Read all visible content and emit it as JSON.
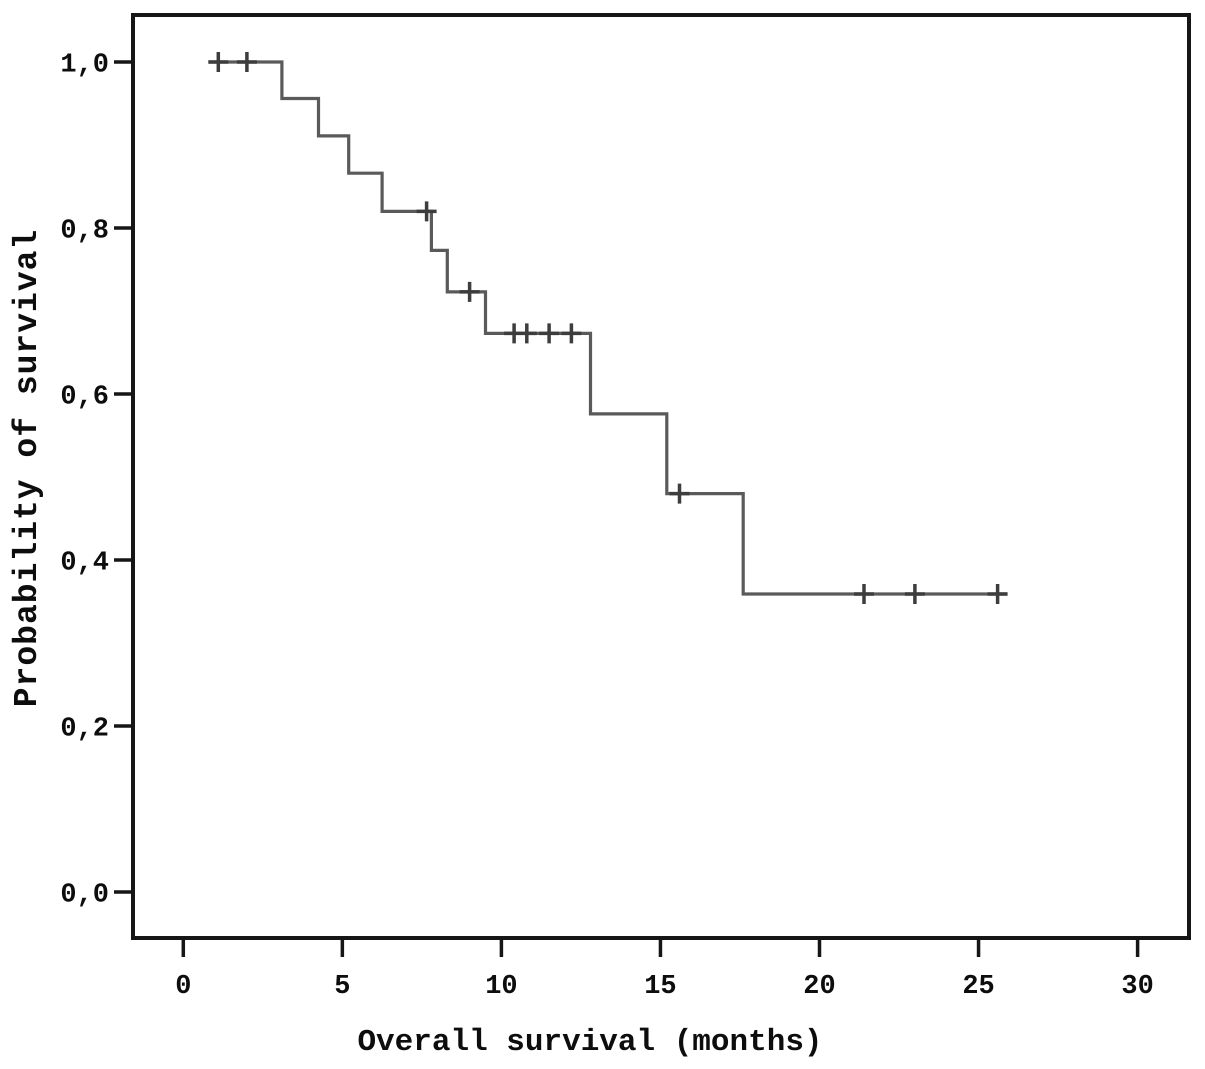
{
  "chart_data": {
    "type": "line",
    "subtype": "kaplan-meier-step",
    "title": "",
    "xlabel": "Overall survival (months)",
    "ylabel": "Probability of survival",
    "xlim": [
      -1.6,
      31.6
    ],
    "ylim": [
      -0.056,
      1.059
    ],
    "grid": false,
    "legend": null,
    "x_ticks": {
      "values": [
        0,
        5,
        10,
        15,
        20,
        25,
        30
      ],
      "labels": [
        "0",
        "5",
        "10",
        "15",
        "20",
        "25",
        "30"
      ]
    },
    "y_ticks": {
      "values": [
        0.0,
        0.2,
        0.4,
        0.6,
        0.8,
        1.0
      ],
      "labels": [
        "0,0",
        "0,2",
        "0,4",
        "0,6",
        "0,8",
        "1,0"
      ]
    },
    "series": [
      {
        "name": "Overall survival",
        "start": {
          "t": 0.8,
          "s": 1.0
        },
        "end_t": 25.9,
        "drops": [
          {
            "t": 3.1,
            "s": 0.956
          },
          {
            "t": 4.25,
            "s": 0.911
          },
          {
            "t": 5.2,
            "s": 0.866
          },
          {
            "t": 6.25,
            "s": 0.82
          },
          {
            "t": 7.8,
            "s": 0.773
          },
          {
            "t": 8.3,
            "s": 0.723
          },
          {
            "t": 9.5,
            "s": 0.673
          },
          {
            "t": 12.8,
            "s": 0.576
          },
          {
            "t": 15.2,
            "s": 0.48
          },
          {
            "t": 17.6,
            "s": 0.359
          }
        ],
        "censors": [
          {
            "t": 1.1,
            "s": 1.0
          },
          {
            "t": 2.0,
            "s": 1.0
          },
          {
            "t": 7.65,
            "s": 0.82
          },
          {
            "t": 9.0,
            "s": 0.723
          },
          {
            "t": 10.4,
            "s": 0.673
          },
          {
            "t": 10.8,
            "s": 0.673
          },
          {
            "t": 11.5,
            "s": 0.673
          },
          {
            "t": 12.2,
            "s": 0.673
          },
          {
            "t": 15.6,
            "s": 0.48
          },
          {
            "t": 21.4,
            "s": 0.359
          },
          {
            "t": 23.0,
            "s": 0.359
          },
          {
            "t": 25.6,
            "s": 0.359
          }
        ],
        "color": "#5a5a5a",
        "censor_color": "#3d3d3d"
      }
    ],
    "colors": {
      "axis": "#161616",
      "text": "#0d0d0d",
      "background": "#ffffff"
    }
  }
}
